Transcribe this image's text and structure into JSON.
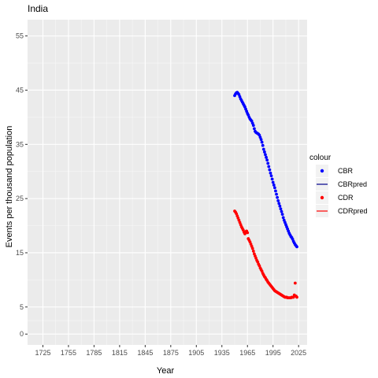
{
  "chart_data": {
    "type": "scatter",
    "title": "India",
    "xlabel": "Year",
    "ylabel": "Events per thousand population",
    "xlim": [
      1707,
      2035
    ],
    "ylim": [
      -2,
      58
    ],
    "x_ticks": [
      1725,
      1755,
      1785,
      1815,
      1845,
      1875,
      1905,
      1935,
      1965,
      1995,
      2025
    ],
    "y_ticks": [
      0,
      5,
      15,
      25,
      35,
      45,
      55
    ],
    "grid": true,
    "legend": {
      "title": "colour",
      "position": "right",
      "entries": [
        {
          "label": "CBR",
          "color": "#0000ff",
          "glyph": "point"
        },
        {
          "label": "CBRpred",
          "color": "#00008b",
          "glyph": "line"
        },
        {
          "label": "CDR",
          "color": "#ff0000",
          "glyph": "point"
        },
        {
          "label": "CDRpred",
          "color": "#ff0000",
          "glyph": "line"
        }
      ]
    },
    "series": [
      {
        "name": "CBR",
        "color": "#0000ff",
        "x": [
          1950,
          1951,
          1952,
          1953,
          1954,
          1955,
          1956,
          1957,
          1958,
          1959,
          1960,
          1961,
          1962,
          1963,
          1964,
          1965,
          1966,
          1967,
          1968,
          1969,
          1970,
          1971,
          1972,
          1973,
          1974,
          1975,
          1976,
          1977,
          1978,
          1979,
          1980,
          1981,
          1982,
          1983,
          1984,
          1985,
          1986,
          1987,
          1988,
          1989,
          1990,
          1991,
          1992,
          1993,
          1994,
          1995,
          1996,
          1997,
          1998,
          1999,
          2000,
          2001,
          2002,
          2003,
          2004,
          2005,
          2006,
          2007,
          2008,
          2009,
          2010,
          2011,
          2012,
          2013,
          2014,
          2015,
          2016,
          2017,
          2018,
          2019,
          2020,
          2021,
          2022,
          2023
        ],
        "values": [
          44.0,
          44.3,
          44.5,
          44.6,
          44.4,
          44.2,
          43.8,
          43.4,
          43.1,
          42.8,
          42.5,
          42.2,
          41.9,
          41.5,
          41.1,
          40.7,
          40.4,
          40.0,
          39.7,
          39.5,
          39.3,
          38.9,
          38.5,
          37.9,
          37.4,
          37.2,
          37.1,
          37.0,
          36.9,
          36.7,
          36.3,
          35.9,
          35.4,
          34.8,
          34.1,
          33.6,
          33.1,
          32.6,
          32.1,
          31.5,
          30.9,
          30.3,
          29.7,
          29.2,
          28.6,
          28.0,
          27.5,
          27.0,
          26.4,
          25.8,
          25.2,
          24.6,
          24.1,
          23.6,
          23.1,
          22.6,
          22.1,
          21.5,
          21.0,
          20.6,
          20.2,
          19.8,
          19.4,
          19.0,
          18.6,
          18.3,
          18.0,
          17.8,
          17.5,
          17.1,
          16.8,
          16.5,
          16.3,
          16.1
        ]
      },
      {
        "name": "CDR",
        "color": "#ff0000",
        "x": [
          1950,
          1951,
          1952,
          1953,
          1954,
          1955,
          1956,
          1957,
          1958,
          1959,
          1960,
          1961,
          1962,
          1963,
          1964,
          1965,
          1966,
          1967,
          1968,
          1969,
          1970,
          1971,
          1972,
          1973,
          1974,
          1975,
          1976,
          1977,
          1978,
          1979,
          1980,
          1981,
          1982,
          1983,
          1984,
          1985,
          1986,
          1987,
          1988,
          1989,
          1990,
          1991,
          1992,
          1993,
          1994,
          1995,
          1996,
          1997,
          1998,
          1999,
          2000,
          2001,
          2002,
          2003,
          2004,
          2005,
          2006,
          2007,
          2008,
          2009,
          2010,
          2011,
          2012,
          2013,
          2014,
          2015,
          2016,
          2017,
          2018,
          2019,
          2020,
          2021,
          2022,
          2023
        ],
        "values": [
          22.7,
          22.5,
          22.2,
          21.8,
          21.4,
          21.0,
          20.6,
          20.2,
          19.8,
          19.5,
          19.2,
          18.8,
          18.5,
          18.9,
          19.0,
          18.7,
          17.6,
          17.3,
          17.0,
          16.6,
          16.2,
          15.8,
          15.3,
          14.8,
          14.4,
          14.0,
          13.6,
          13.3,
          12.9,
          12.6,
          12.2,
          11.9,
          11.6,
          11.2,
          10.9,
          10.6,
          10.4,
          10.1,
          9.9,
          9.6,
          9.4,
          9.2,
          9.0,
          8.8,
          8.6,
          8.4,
          8.2,
          8.0,
          7.9,
          7.8,
          7.7,
          7.6,
          7.5,
          7.4,
          7.3,
          7.2,
          7.1,
          7.0,
          6.9,
          6.8,
          6.8,
          6.8,
          6.7,
          6.7,
          6.7,
          6.7,
          6.7,
          6.8,
          6.8,
          6.8,
          7.2,
          9.4,
          7.0,
          6.8
        ]
      }
    ]
  }
}
